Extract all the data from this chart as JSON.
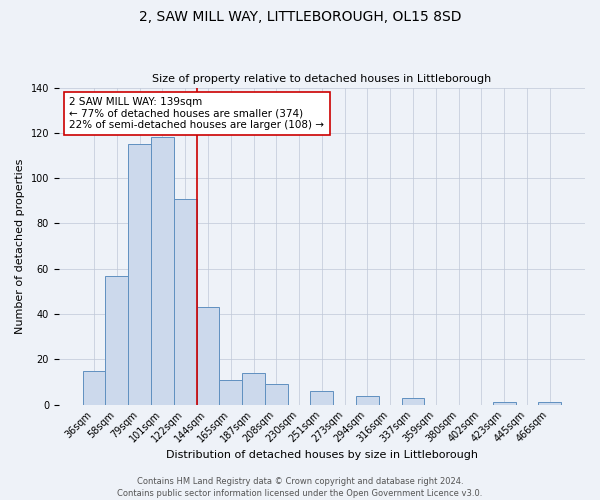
{
  "title": "2, SAW MILL WAY, LITTLEBOROUGH, OL15 8SD",
  "subtitle": "Size of property relative to detached houses in Littleborough",
  "xlabel": "Distribution of detached houses by size in Littleborough",
  "ylabel": "Number of detached properties",
  "bar_color": "#ccd9ec",
  "bar_edge_color": "#6090c0",
  "categories": [
    "36sqm",
    "58sqm",
    "79sqm",
    "101sqm",
    "122sqm",
    "144sqm",
    "165sqm",
    "187sqm",
    "208sqm",
    "230sqm",
    "251sqm",
    "273sqm",
    "294sqm",
    "316sqm",
    "337sqm",
    "359sqm",
    "380sqm",
    "402sqm",
    "423sqm",
    "445sqm",
    "466sqm"
  ],
  "values": [
    15,
    57,
    115,
    118,
    91,
    43,
    11,
    14,
    9,
    0,
    6,
    0,
    4,
    0,
    3,
    0,
    0,
    0,
    1,
    0,
    1
  ],
  "vline_color": "#cc0000",
  "vline_pos": 4.5,
  "annotation_text": "2 SAW MILL WAY: 139sqm\n← 77% of detached houses are smaller (374)\n22% of semi-detached houses are larger (108) →",
  "annotation_fontsize": 7.5,
  "annotation_box_facecolor": "white",
  "annotation_box_edgecolor": "#cc0000",
  "ylim": [
    0,
    140
  ],
  "yticks": [
    0,
    20,
    40,
    60,
    80,
    100,
    120,
    140
  ],
  "background_color": "#eef2f8",
  "title_fontsize": 10,
  "subtitle_fontsize": 8,
  "xlabel_fontsize": 8,
  "ylabel_fontsize": 8,
  "tick_fontsize": 7,
  "footer_fontsize": 6,
  "footer_text": "Contains HM Land Registry data © Crown copyright and database right 2024.\nContains public sector information licensed under the Open Government Licence v3.0.",
  "grid_color": "#c0c8d8",
  "vline_linewidth": 1.2
}
